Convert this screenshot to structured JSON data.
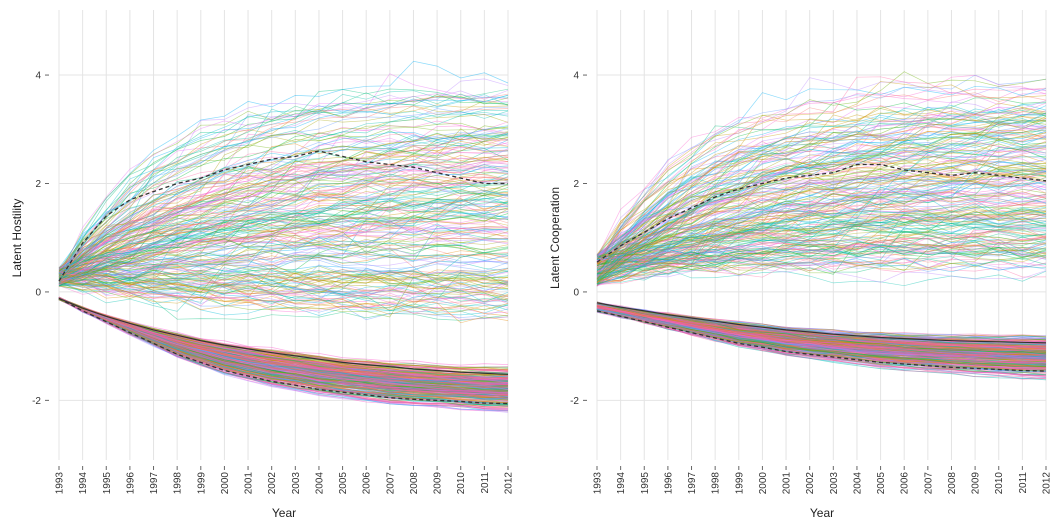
{
  "chart_data": [
    {
      "type": "line",
      "xlabel": "Year",
      "ylabel": "Latent Hostility",
      "x": [
        1993,
        1994,
        1995,
        1996,
        1997,
        1998,
        1999,
        2000,
        2001,
        2002,
        2003,
        2004,
        2005,
        2006,
        2007,
        2008,
        2009,
        2010,
        2011,
        2012
      ],
      "xlim": [
        1993,
        2012
      ],
      "ylim": [
        -3.1,
        5.2
      ],
      "yticks": [
        -2,
        0,
        2,
        4
      ],
      "grid": true,
      "dashed_series": [
        {
          "values": [
            0.2,
            0.9,
            1.4,
            1.7,
            1.85,
            2.0,
            2.1,
            2.25,
            2.35,
            2.45,
            2.5,
            2.6,
            2.5,
            2.4,
            2.35,
            2.3,
            2.2,
            2.1,
            2.0,
            2.0
          ]
        },
        {
          "values": [
            -0.12,
            -0.35,
            -0.55,
            -0.75,
            -0.95,
            -1.15,
            -1.3,
            -1.45,
            -1.55,
            -1.65,
            -1.72,
            -1.8,
            -1.85,
            -1.9,
            -1.95,
            -1.98,
            -2.0,
            -2.02,
            -2.05,
            -2.06
          ]
        }
      ],
      "solid_series": [
        {
          "values": [
            -0.12,
            -0.3,
            -0.45,
            -0.58,
            -0.7,
            -0.8,
            -0.9,
            -0.98,
            -1.05,
            -1.12,
            -1.18,
            -1.24,
            -1.3,
            -1.34,
            -1.38,
            -1.42,
            -1.45,
            -1.48,
            -1.5,
            -1.52
          ]
        }
      ]
    },
    {
      "type": "line",
      "xlabel": "Year",
      "ylabel": "Latent Cooperation",
      "x": [
        1993,
        1994,
        1995,
        1996,
        1997,
        1998,
        1999,
        2000,
        2001,
        2002,
        2003,
        2004,
        2005,
        2006,
        2007,
        2008,
        2009,
        2010,
        2011,
        2012
      ],
      "xlim": [
        1993,
        2012
      ],
      "ylim": [
        -3.1,
        5.2
      ],
      "yticks": [
        -2,
        0,
        2,
        4
      ],
      "grid": true,
      "dashed_series": [
        {
          "values": [
            0.55,
            0.85,
            1.1,
            1.35,
            1.55,
            1.75,
            1.9,
            2.0,
            2.1,
            2.15,
            2.2,
            2.35,
            2.35,
            2.25,
            2.2,
            2.15,
            2.2,
            2.15,
            2.1,
            2.05
          ]
        },
        {
          "values": [
            -0.35,
            -0.45,
            -0.55,
            -0.65,
            -0.75,
            -0.85,
            -0.95,
            -1.02,
            -1.1,
            -1.15,
            -1.2,
            -1.25,
            -1.3,
            -1.33,
            -1.36,
            -1.39,
            -1.41,
            -1.43,
            -1.45,
            -1.46
          ]
        }
      ],
      "solid_series": [
        {
          "values": [
            -0.2,
            -0.28,
            -0.35,
            -0.42,
            -0.48,
            -0.54,
            -0.6,
            -0.65,
            -0.7,
            -0.74,
            -0.78,
            -0.81,
            -0.84,
            -0.86,
            -0.88,
            -0.9,
            -0.91,
            -0.92,
            -0.93,
            -0.94
          ]
        }
      ]
    }
  ],
  "colors": {
    "grid": "#e4e4e4",
    "reference_line": "#333333",
    "bundle_palette": [
      "#f8766d",
      "#e58700",
      "#c99800",
      "#a3a500",
      "#6bb100",
      "#00ba38",
      "#00bf7d",
      "#00c0af",
      "#00bcd8",
      "#00b0f6",
      "#619cff",
      "#b983ff",
      "#e76bf3",
      "#fd61d1",
      "#ff67a4"
    ],
    "dense_band": "#e85fa8"
  }
}
